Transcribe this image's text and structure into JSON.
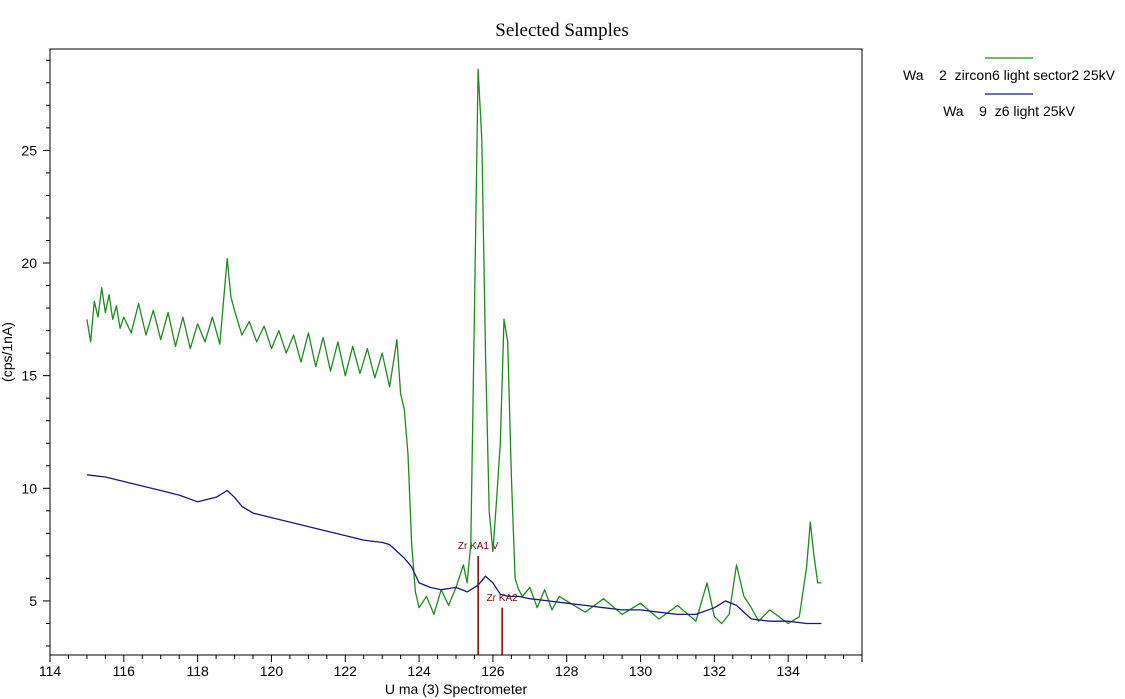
{
  "chart_data": {
    "type": "line",
    "title": "Selected Samples",
    "xlabel": "U  ma (3) Spectrometer",
    "ylabel": "(cps/1nA)",
    "xlim": [
      114,
      136
    ],
    "ylim": [
      2.6,
      29.5
    ],
    "xticks": [
      "114",
      "116",
      "118",
      "120",
      "122",
      "124",
      "126",
      "128",
      "130",
      "132",
      "134"
    ],
    "yticks": [
      "5",
      "10",
      "15",
      "20",
      "25"
    ],
    "legend_position": "top-right",
    "series": [
      {
        "name": "Wa    2  zircon6 light sector2 25kV",
        "color": "#1f8a1f",
        "x": [
          115.0,
          115.1,
          115.2,
          115.3,
          115.4,
          115.5,
          115.6,
          115.7,
          115.8,
          115.9,
          116.0,
          116.2,
          116.4,
          116.6,
          116.8,
          117.0,
          117.2,
          117.4,
          117.6,
          117.8,
          118.0,
          118.2,
          118.4,
          118.6,
          118.8,
          118.9,
          119.0,
          119.2,
          119.4,
          119.6,
          119.8,
          120.0,
          120.2,
          120.4,
          120.6,
          120.8,
          121.0,
          121.2,
          121.4,
          121.6,
          121.8,
          122.0,
          122.2,
          122.4,
          122.6,
          122.8,
          123.0,
          123.2,
          123.4,
          123.5,
          123.6,
          123.7,
          123.8,
          123.9,
          124.0,
          124.2,
          124.4,
          124.6,
          124.8,
          125.0,
          125.2,
          125.3,
          125.4,
          125.5,
          125.6,
          125.7,
          125.8,
          125.9,
          126.0,
          126.1,
          126.2,
          126.3,
          126.4,
          126.5,
          126.6,
          126.7,
          126.8,
          127.0,
          127.2,
          127.4,
          127.6,
          127.8,
          128.0,
          128.5,
          129.0,
          129.5,
          130.0,
          130.5,
          131.0,
          131.5,
          131.8,
          132.0,
          132.2,
          132.4,
          132.6,
          132.8,
          133.0,
          133.2,
          133.5,
          134.0,
          134.3,
          134.5,
          134.6,
          134.7,
          134.8,
          134.9
        ],
        "y": [
          17.5,
          16.5,
          18.3,
          17.6,
          18.9,
          17.8,
          18.6,
          17.5,
          18.1,
          17.1,
          17.6,
          16.9,
          18.2,
          16.8,
          17.9,
          16.6,
          17.8,
          16.3,
          17.6,
          16.2,
          17.3,
          16.5,
          17.6,
          16.4,
          20.2,
          18.5,
          17.9,
          16.8,
          17.4,
          16.5,
          17.2,
          16.2,
          17.0,
          16.0,
          16.8,
          15.6,
          16.9,
          15.4,
          16.7,
          15.2,
          16.5,
          15.0,
          16.3,
          15.1,
          16.2,
          14.9,
          16.0,
          14.5,
          16.6,
          14.2,
          13.5,
          11.5,
          7.5,
          5.4,
          4.7,
          5.2,
          4.4,
          5.5,
          4.8,
          5.6,
          6.6,
          5.8,
          7.5,
          18.0,
          28.6,
          25.5,
          16.0,
          9.0,
          7.2,
          9.5,
          12.0,
          17.5,
          16.5,
          10.5,
          6.0,
          5.5,
          5.2,
          5.6,
          4.7,
          5.5,
          4.6,
          5.2,
          5.0,
          4.5,
          5.1,
          4.4,
          4.9,
          4.2,
          4.8,
          4.1,
          5.8,
          4.3,
          4.0,
          4.4,
          6.6,
          5.2,
          4.7,
          4.1,
          4.6,
          4.0,
          4.3,
          6.5,
          8.5,
          7.0,
          5.8,
          5.8
        ]
      },
      {
        "name": "Wa    9  z6 light 25kV",
        "color": "#1a1a7a",
        "x": [
          115.0,
          115.5,
          116.0,
          116.5,
          117.0,
          117.5,
          118.0,
          118.5,
          118.8,
          119.0,
          119.2,
          119.5,
          120.0,
          120.5,
          121.0,
          121.5,
          122.0,
          122.5,
          123.0,
          123.2,
          123.4,
          123.6,
          123.8,
          124.0,
          124.3,
          124.6,
          125.0,
          125.3,
          125.6,
          125.8,
          126.0,
          126.2,
          126.4,
          126.7,
          127.0,
          127.5,
          128.0,
          128.5,
          129.0,
          129.5,
          130.0,
          130.5,
          131.0,
          131.5,
          132.0,
          132.3,
          132.6,
          133.0,
          133.5,
          134.0,
          134.5,
          134.9
        ],
        "y": [
          10.6,
          10.5,
          10.3,
          10.1,
          9.9,
          9.7,
          9.4,
          9.6,
          9.9,
          9.6,
          9.2,
          8.9,
          8.7,
          8.5,
          8.3,
          8.1,
          7.9,
          7.7,
          7.6,
          7.5,
          7.2,
          6.9,
          6.5,
          5.8,
          5.6,
          5.5,
          5.6,
          5.4,
          5.7,
          6.1,
          5.8,
          5.3,
          5.2,
          5.2,
          5.1,
          5.0,
          4.9,
          4.8,
          4.7,
          4.6,
          4.6,
          4.5,
          4.4,
          4.4,
          4.7,
          5.0,
          4.8,
          4.2,
          4.1,
          4.1,
          4.0,
          4.0
        ]
      }
    ],
    "markers": [
      {
        "label": "Zr KA1 V",
        "x": 125.6,
        "y_top": 7.0,
        "label_y": 7.3
      },
      {
        "label": "Zr KA2",
        "x": 126.25,
        "y_top": 4.7,
        "label_y": 5.0
      }
    ]
  }
}
